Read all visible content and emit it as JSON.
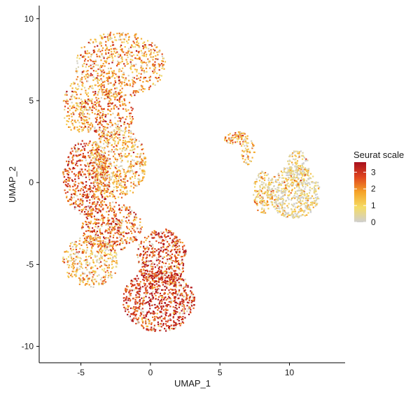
{
  "chart_data": {
    "type": "scatter",
    "title": "",
    "xlabel": "UMAP_1",
    "ylabel": "UMAP_2",
    "xlim": [
      -8,
      14
    ],
    "ylim": [
      -11,
      10.8
    ],
    "x_ticks": [
      -5,
      0,
      5,
      10
    ],
    "y_ticks": [
      -10,
      -5,
      0,
      5,
      10
    ],
    "grid": false,
    "legend": {
      "title": "Seurat scale",
      "position": "right",
      "range": [
        0,
        3.6
      ],
      "ticks": [
        0,
        1,
        2,
        3
      ],
      "colors": [
        "#cfcfcf",
        "#f5dc64",
        "#f5a428",
        "#e0461e",
        "#a8101e"
      ]
    },
    "point_regions": [
      {
        "name": "top lobe",
        "cx": -2.2,
        "cy": 7.2,
        "rx": 3.3,
        "ry": 2.0,
        "level": 1.9,
        "weight": 650
      },
      {
        "name": "upper-left arc",
        "cx": -5.3,
        "cy": 4.6,
        "rx": 1.0,
        "ry": 1.7,
        "level": 1.6,
        "weight": 160
      },
      {
        "name": "upper-middle",
        "cx": -3.2,
        "cy": 4.2,
        "rx": 2.0,
        "ry": 1.5,
        "level": 2.2,
        "weight": 320
      },
      {
        "name": "middle-left",
        "cx": -4.6,
        "cy": 0.3,
        "rx": 1.7,
        "ry": 2.3,
        "level": 2.6,
        "weight": 520
      },
      {
        "name": "middle",
        "cx": -2.4,
        "cy": 1.2,
        "rx": 2.1,
        "ry": 2.2,
        "level": 1.6,
        "weight": 560
      },
      {
        "name": "lower-middle",
        "cx": -2.8,
        "cy": -2.7,
        "rx": 2.2,
        "ry": 1.5,
        "level": 2.4,
        "weight": 420
      },
      {
        "name": "lower-left",
        "cx": -4.3,
        "cy": -4.8,
        "rx": 2.0,
        "ry": 1.6,
        "level": 1.5,
        "weight": 380
      },
      {
        "name": "lower-right",
        "cx": 0.8,
        "cy": -4.6,
        "rx": 1.8,
        "ry": 1.8,
        "level": 2.8,
        "weight": 450
      },
      {
        "name": "bottom",
        "cx": 0.6,
        "cy": -7.2,
        "rx": 2.6,
        "ry": 1.9,
        "level": 2.9,
        "weight": 760
      },
      {
        "name": "right cluster",
        "cx": 10.3,
        "cy": -0.6,
        "rx": 1.9,
        "ry": 1.6,
        "level": 0.6,
        "weight": 560
      },
      {
        "name": "right cluster upper arm",
        "cx": 10.6,
        "cy": 0.9,
        "rx": 0.8,
        "ry": 1.1,
        "level": 0.8,
        "weight": 120
      },
      {
        "name": "right cluster left arm",
        "cx": 8.1,
        "cy": -0.6,
        "rx": 0.7,
        "ry": 1.3,
        "level": 1.2,
        "weight": 140
      },
      {
        "name": "middle bridge",
        "cx": 6.2,
        "cy": 2.7,
        "rx": 0.9,
        "ry": 0.4,
        "level": 1.8,
        "weight": 70
      },
      {
        "name": "bridge diagonal",
        "cx": 7.0,
        "cy": 1.9,
        "rx": 0.5,
        "ry": 0.8,
        "level": 1.2,
        "weight": 50
      }
    ]
  }
}
